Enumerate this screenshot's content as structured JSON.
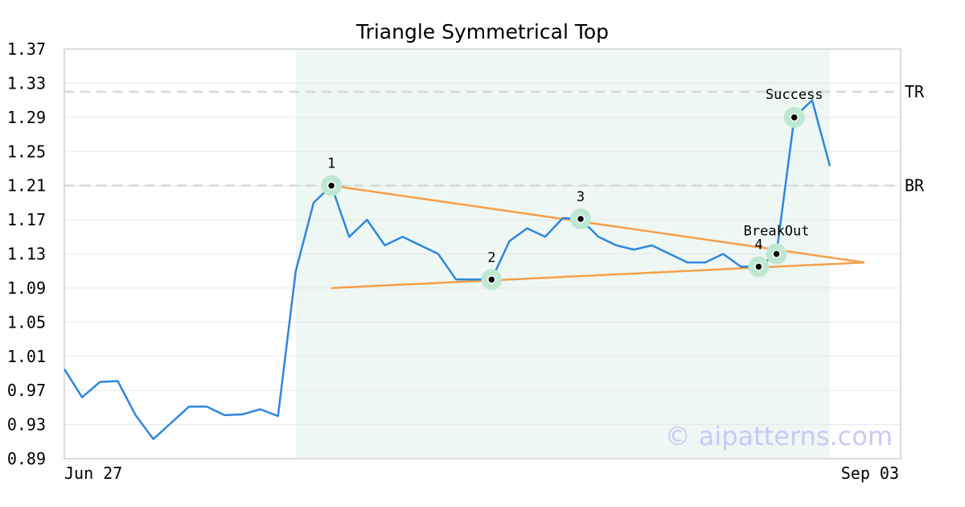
{
  "chart_data": {
    "type": "line",
    "title": "Triangle Symmetrical Top",
    "ylim": [
      0.89,
      1.37
    ],
    "y_ticks": [
      "1.37",
      "1.33",
      "1.29",
      "1.25",
      "1.21",
      "1.17",
      "1.13",
      "1.09",
      "1.05",
      "1.01",
      "0.97",
      "0.93",
      "0.89"
    ],
    "x_tick_labels": [
      "Jun 27",
      "Sep 03"
    ],
    "grid": true,
    "series": [
      {
        "color": "#2e86de",
        "values": [
          0.995,
          0.962,
          0.98,
          0.981,
          0.941,
          0.913,
          0.932,
          0.951,
          0.951,
          0.941,
          0.942,
          0.948,
          0.94,
          1.11,
          1.19,
          1.21,
          1.15,
          1.17,
          1.14,
          1.15,
          1.14,
          1.13,
          1.1,
          1.1,
          1.1,
          1.145,
          1.16,
          1.15,
          1.172,
          1.171,
          1.15,
          1.14,
          1.135,
          1.14,
          1.13,
          1.12,
          1.12,
          1.13,
          1.115,
          1.115,
          1.13,
          1.29,
          1.31,
          1.233
        ]
      }
    ],
    "pattern_region": [
      13,
      43
    ],
    "trendlines": [
      {
        "color": "#f5a04a",
        "from": [
          15,
          1.21
        ],
        "to": [
          44,
          1.12
        ]
      },
      {
        "color": "#f5a04a",
        "from": [
          15,
          1.09
        ],
        "to": [
          44,
          1.12
        ]
      }
    ],
    "reference_lines": [
      {
        "label": "TR",
        "y": 1.32
      },
      {
        "label": "BR",
        "y": 1.21
      }
    ],
    "points": [
      {
        "label": "1",
        "x": 15,
        "y": 1.21
      },
      {
        "label": "2",
        "x": 24,
        "y": 1.1
      },
      {
        "label": "3",
        "x": 29,
        "y": 1.171
      },
      {
        "label": "4",
        "x": 39,
        "y": 1.115
      },
      {
        "label": "BreakOut",
        "x": 40,
        "y": 1.13
      },
      {
        "label": "Success",
        "x": 41,
        "y": 1.29
      }
    ],
    "watermark": "© aipatterns.com"
  }
}
